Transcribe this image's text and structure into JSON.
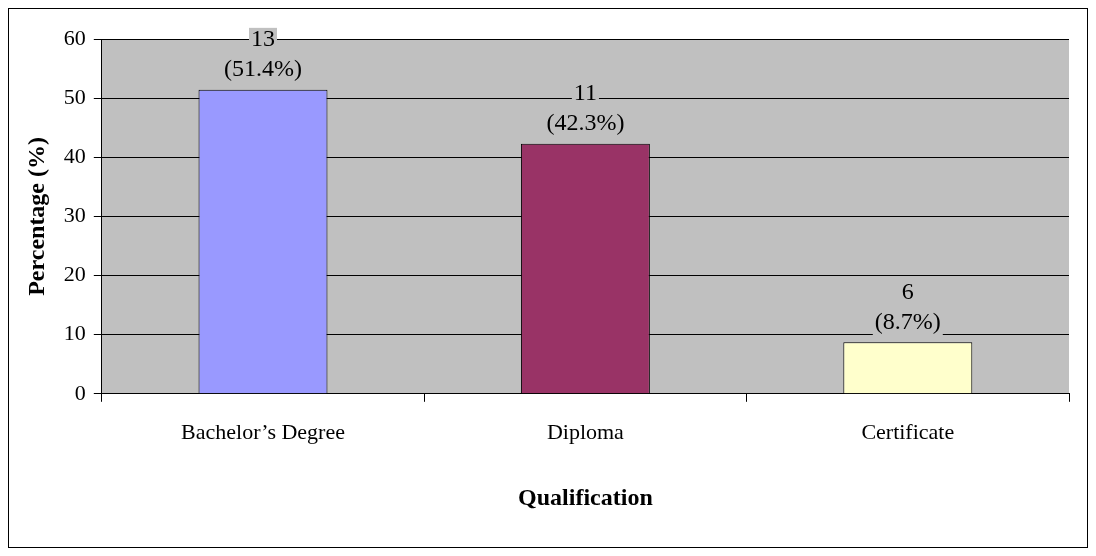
{
  "chart_data": {
    "type": "bar",
    "xlabel": "Qualification",
    "ylabel": "Percentage (%)",
    "categories": [
      "Bachelor’s Degree",
      "Diploma",
      "Certificate"
    ],
    "values": [
      51.4,
      42.3,
      8.7
    ],
    "colors": [
      "#9999ff",
      "#993366",
      "#ffffcc"
    ],
    "value_labels": [
      "13\n(51.4%)",
      "11\n(42.3%)",
      "6\n(8.7%)"
    ],
    "ylim": [
      0,
      60
    ],
    "yticks": [
      0,
      10,
      20,
      30,
      40,
      50,
      60
    ],
    "grid": "y",
    "legend": false
  }
}
